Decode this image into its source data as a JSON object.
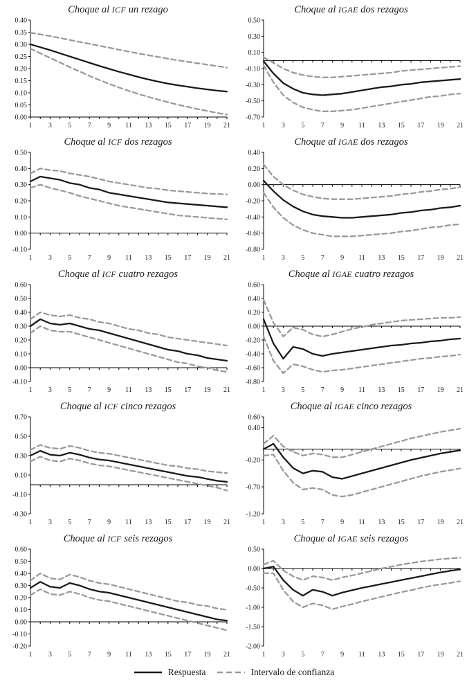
{
  "legend": {
    "respuesta_label": "Respuesta",
    "intervalo_label": "Intervalo de confianza"
  },
  "colors": {
    "respuesta_line": "#1a1a1a",
    "intervalo_line": "#9a9a9a",
    "axis": "#000000"
  },
  "x_values": [
    1,
    2,
    3,
    4,
    5,
    6,
    7,
    8,
    9,
    10,
    11,
    12,
    13,
    14,
    15,
    16,
    17,
    18,
    19,
    20,
    21
  ],
  "x_tick_labels": [
    "1",
    "3",
    "5",
    "7",
    "9",
    "11",
    "13",
    "15",
    "17",
    "19",
    "21"
  ],
  "chart_data": [
    {
      "type": "line",
      "title": "Choque al ICF un rezago",
      "title_parts": {
        "prefix": "Choque al ",
        "acronym": "ICF",
        "suffix": " un rezago"
      },
      "xlim": [
        1,
        21
      ],
      "ylim": [
        0.0,
        0.4
      ],
      "ytick_labels": [
        "0.40",
        "0.35",
        "0.30",
        "0.25",
        "0.20",
        "0.15",
        "0.10",
        "0.05",
        "0.00"
      ],
      "series": [
        {
          "name": "Respuesta",
          "values": [
            0.3,
            0.288,
            0.276,
            0.263,
            0.25,
            0.237,
            0.224,
            0.211,
            0.199,
            0.187,
            0.176,
            0.165,
            0.155,
            0.146,
            0.138,
            0.131,
            0.125,
            0.119,
            0.114,
            0.109,
            0.105
          ]
        },
        {
          "name": "Intervalo de confianza (superior)",
          "values": [
            0.348,
            0.341,
            0.334,
            0.326,
            0.318,
            0.31,
            0.302,
            0.294,
            0.286,
            0.278,
            0.27,
            0.262,
            0.255,
            0.248,
            0.241,
            0.234,
            0.228,
            0.222,
            0.216,
            0.21,
            0.204
          ]
        },
        {
          "name": "Intervalo de confianza (inferior)",
          "values": [
            0.282,
            0.263,
            0.244,
            0.225,
            0.206,
            0.188,
            0.17,
            0.153,
            0.137,
            0.122,
            0.108,
            0.095,
            0.083,
            0.072,
            0.061,
            0.051,
            0.042,
            0.033,
            0.025,
            0.017,
            0.01
          ]
        }
      ]
    },
    {
      "type": "line",
      "title": "Choque al IGAE dos rezagos",
      "title_parts": {
        "prefix": "Choque al ",
        "acronym": "IGAE",
        "suffix": " dos rezagos"
      },
      "xlim": [
        1,
        21
      ],
      "ylim": [
        -0.7,
        0.5
      ],
      "ytick_labels": [
        "0.50",
        "0.30",
        "0.10",
        "-0.10",
        "-0.30",
        "-0.50",
        "-0.70"
      ],
      "series": [
        {
          "name": "Respuesta",
          "values": [
            -0.01,
            -0.16,
            -0.28,
            -0.35,
            -0.4,
            -0.42,
            -0.43,
            -0.42,
            -0.41,
            -0.39,
            -0.37,
            -0.35,
            -0.33,
            -0.32,
            -0.3,
            -0.29,
            -0.27,
            -0.26,
            -0.25,
            -0.24,
            -0.23
          ]
        },
        {
          "name": "Intervalo de confianza (superior)",
          "values": [
            0.04,
            -0.03,
            -0.1,
            -0.15,
            -0.18,
            -0.2,
            -0.21,
            -0.21,
            -0.2,
            -0.19,
            -0.18,
            -0.17,
            -0.16,
            -0.15,
            -0.13,
            -0.12,
            -0.11,
            -0.1,
            -0.09,
            -0.08,
            -0.07
          ]
        },
        {
          "name": "Intervalo de confianza (inferior)",
          "values": [
            -0.06,
            -0.27,
            -0.43,
            -0.52,
            -0.58,
            -0.61,
            -0.63,
            -0.63,
            -0.62,
            -0.61,
            -0.59,
            -0.57,
            -0.55,
            -0.53,
            -0.51,
            -0.49,
            -0.47,
            -0.45,
            -0.44,
            -0.42,
            -0.41
          ]
        }
      ]
    },
    {
      "type": "line",
      "title": "Choque al ICF dos rezagos",
      "title_parts": {
        "prefix": "Choque al ",
        "acronym": "ICF",
        "suffix": " dos rezagos"
      },
      "xlim": [
        1,
        21
      ],
      "ylim": [
        -0.1,
        0.5
      ],
      "ytick_labels": [
        "0.50",
        "0.40",
        "0.30",
        "0.20",
        "0.10",
        "0.00",
        "-0.10"
      ],
      "series": [
        {
          "name": "Respuesta",
          "values": [
            0.32,
            0.35,
            0.34,
            0.33,
            0.31,
            0.3,
            0.28,
            0.27,
            0.25,
            0.24,
            0.23,
            0.22,
            0.21,
            0.2,
            0.19,
            0.185,
            0.18,
            0.175,
            0.17,
            0.165,
            0.16
          ]
        },
        {
          "name": "Intervalo de confianza (superior)",
          "values": [
            0.37,
            0.4,
            0.39,
            0.385,
            0.37,
            0.36,
            0.35,
            0.335,
            0.32,
            0.31,
            0.3,
            0.29,
            0.28,
            0.275,
            0.265,
            0.26,
            0.255,
            0.25,
            0.245,
            0.242,
            0.24
          ]
        },
        {
          "name": "Intervalo de confianza (inferior)",
          "values": [
            0.28,
            0.3,
            0.28,
            0.265,
            0.25,
            0.23,
            0.215,
            0.2,
            0.185,
            0.17,
            0.16,
            0.15,
            0.14,
            0.13,
            0.12,
            0.11,
            0.105,
            0.1,
            0.095,
            0.09,
            0.085
          ]
        }
      ]
    },
    {
      "type": "line",
      "title": "Choque al IGAE dos rezagos",
      "title_parts": {
        "prefix": "Choque al ",
        "acronym": "IGAE",
        "suffix": " dos rezagos"
      },
      "xlim": [
        1,
        21
      ],
      "ylim": [
        -0.8,
        0.4
      ],
      "ytick_labels": [
        "0.40",
        "0.20",
        "0.00",
        "-0.20",
        "-0.40",
        "-0.60",
        "-0.80"
      ],
      "series": [
        {
          "name": "Respuesta",
          "values": [
            0.05,
            -0.08,
            -0.19,
            -0.27,
            -0.33,
            -0.37,
            -0.39,
            -0.4,
            -0.41,
            -0.41,
            -0.4,
            -0.39,
            -0.38,
            -0.37,
            -0.35,
            -0.34,
            -0.32,
            -0.31,
            -0.29,
            -0.28,
            -0.26
          ]
        },
        {
          "name": "Intervalo de confianza (superior)",
          "values": [
            0.25,
            0.1,
            0.0,
            -0.07,
            -0.12,
            -0.15,
            -0.17,
            -0.18,
            -0.18,
            -0.18,
            -0.17,
            -0.16,
            -0.15,
            -0.14,
            -0.12,
            -0.11,
            -0.09,
            -0.08,
            -0.06,
            -0.05,
            -0.03
          ]
        },
        {
          "name": "Intervalo de confianza (inferior)",
          "values": [
            -0.1,
            -0.28,
            -0.41,
            -0.5,
            -0.56,
            -0.6,
            -0.62,
            -0.64,
            -0.64,
            -0.64,
            -0.63,
            -0.62,
            -0.61,
            -0.6,
            -0.58,
            -0.57,
            -0.55,
            -0.53,
            -0.52,
            -0.5,
            -0.49
          ]
        }
      ]
    },
    {
      "type": "line",
      "title": "Choque al ICF cuatro rezagos",
      "title_parts": {
        "prefix": "Choque al ",
        "acronym": "ICF",
        "suffix": " cuatro rezagos"
      },
      "xlim": [
        1,
        21
      ],
      "ylim": [
        -0.1,
        0.6
      ],
      "ytick_labels": [
        "0.60",
        "0.50",
        "0.40",
        "0.30",
        "0.20",
        "0.10",
        "0.00",
        "-0.10"
      ],
      "series": [
        {
          "name": "Respuesta",
          "values": [
            0.3,
            0.35,
            0.32,
            0.31,
            0.32,
            0.3,
            0.28,
            0.27,
            0.25,
            0.23,
            0.21,
            0.19,
            0.17,
            0.15,
            0.13,
            0.12,
            0.1,
            0.09,
            0.07,
            0.06,
            0.05
          ]
        },
        {
          "name": "Intervalo de confianza (superior)",
          "values": [
            0.35,
            0.4,
            0.38,
            0.37,
            0.38,
            0.36,
            0.35,
            0.33,
            0.32,
            0.3,
            0.28,
            0.27,
            0.25,
            0.24,
            0.22,
            0.21,
            0.2,
            0.19,
            0.18,
            0.17,
            0.16
          ]
        },
        {
          "name": "Intervalo de confianza (inferior)",
          "values": [
            0.25,
            0.3,
            0.27,
            0.26,
            0.26,
            0.24,
            0.22,
            0.2,
            0.18,
            0.16,
            0.14,
            0.12,
            0.1,
            0.08,
            0.06,
            0.04,
            0.03,
            0.01,
            0.0,
            -0.02,
            -0.03
          ]
        }
      ]
    },
    {
      "type": "line",
      "title": "Choque al IGAE cuatro rezagos",
      "title_parts": {
        "prefix": "Choque al ",
        "acronym": "IGAE",
        "suffix": " cuatro rezagos"
      },
      "xlim": [
        1,
        21
      ],
      "ylim": [
        -0.8,
        0.6
      ],
      "ytick_labels": [
        "0.60",
        "0.40",
        "0.20",
        "0.00",
        "-0.20",
        "-0.40",
        "-0.60",
        "-0.80"
      ],
      "series": [
        {
          "name": "Respuesta",
          "values": [
            0.1,
            -0.25,
            -0.47,
            -0.3,
            -0.33,
            -0.4,
            -0.43,
            -0.4,
            -0.38,
            -0.36,
            -0.34,
            -0.32,
            -0.3,
            -0.28,
            -0.27,
            -0.25,
            -0.24,
            -0.22,
            -0.21,
            -0.19,
            -0.18
          ]
        },
        {
          "name": "Intervalo de confianza (superior)",
          "values": [
            0.38,
            0.05,
            -0.15,
            -0.02,
            -0.05,
            -0.12,
            -0.15,
            -0.12,
            -0.08,
            -0.04,
            -0.01,
            0.02,
            0.04,
            0.06,
            0.08,
            0.09,
            0.1,
            0.11,
            0.12,
            0.12,
            0.13
          ]
        },
        {
          "name": "Intervalo de confianza (inferior)",
          "values": [
            -0.15,
            -0.5,
            -0.68,
            -0.55,
            -0.58,
            -0.63,
            -0.66,
            -0.64,
            -0.63,
            -0.61,
            -0.59,
            -0.57,
            -0.55,
            -0.53,
            -0.51,
            -0.49,
            -0.47,
            -0.46,
            -0.44,
            -0.43,
            -0.41
          ]
        }
      ]
    },
    {
      "type": "line",
      "title": "Choque al ICF cinco rezagos",
      "title_parts": {
        "prefix": "Choque al ",
        "acronym": "ICF",
        "suffix": " cinco rezagos"
      },
      "xlim": [
        1,
        21
      ],
      "ylim": [
        -0.3,
        0.7
      ],
      "ytick_labels": [
        "0.70",
        "0.50",
        "0.30",
        "0.10",
        "-0.10",
        "-0.30"
      ],
      "series": [
        {
          "name": "Respuesta",
          "values": [
            0.3,
            0.35,
            0.31,
            0.3,
            0.33,
            0.31,
            0.28,
            0.26,
            0.25,
            0.23,
            0.21,
            0.19,
            0.17,
            0.15,
            0.13,
            0.11,
            0.09,
            0.08,
            0.06,
            0.04,
            0.03
          ]
        },
        {
          "name": "Intervalo de confianza (superior)",
          "values": [
            0.36,
            0.41,
            0.38,
            0.37,
            0.4,
            0.38,
            0.35,
            0.33,
            0.32,
            0.3,
            0.28,
            0.26,
            0.24,
            0.22,
            0.2,
            0.19,
            0.17,
            0.16,
            0.14,
            0.13,
            0.12
          ]
        },
        {
          "name": "Intervalo de confianza (inferior)",
          "values": [
            0.24,
            0.29,
            0.25,
            0.24,
            0.27,
            0.25,
            0.22,
            0.2,
            0.19,
            0.17,
            0.15,
            0.13,
            0.11,
            0.09,
            0.07,
            0.05,
            0.03,
            0.01,
            -0.01,
            -0.03,
            -0.06
          ]
        }
      ]
    },
    {
      "type": "line",
      "title": "Choque al IGAE cinco rezagos",
      "title_parts": {
        "prefix": "Choque al ",
        "acronym": "IGAE",
        "suffix": " cinco rezagos"
      },
      "xlim": [
        1,
        21
      ],
      "ylim": [
        -1.2,
        0.6
      ],
      "ytick_labels": [
        "0.60",
        "0.40",
        "-0.20",
        "-0.70",
        "-1.20"
      ],
      "series": [
        {
          "name": "Respuesta",
          "values": [
            0.0,
            0.1,
            -0.15,
            -0.35,
            -0.45,
            -0.4,
            -0.42,
            -0.52,
            -0.55,
            -0.5,
            -0.45,
            -0.4,
            -0.35,
            -0.3,
            -0.25,
            -0.2,
            -0.16,
            -0.12,
            -0.08,
            -0.05,
            -0.02
          ]
        },
        {
          "name": "Intervalo de confianza (superior)",
          "values": [
            0.1,
            0.25,
            0.05,
            -0.05,
            -0.12,
            -0.08,
            -0.1,
            -0.15,
            -0.15,
            -0.1,
            -0.05,
            0.0,
            0.05,
            0.1,
            0.15,
            0.2,
            0.24,
            0.28,
            0.32,
            0.35,
            0.38
          ]
        },
        {
          "name": "Intervalo de confianza (inferior)",
          "values": [
            -0.12,
            -0.1,
            -0.4,
            -0.62,
            -0.75,
            -0.72,
            -0.75,
            -0.85,
            -0.88,
            -0.85,
            -0.8,
            -0.75,
            -0.7,
            -0.65,
            -0.6,
            -0.55,
            -0.5,
            -0.46,
            -0.42,
            -0.39,
            -0.36
          ]
        }
      ]
    },
    {
      "type": "line",
      "title": "Choque al ICF seis rezagos",
      "title_parts": {
        "prefix": "Choque al ",
        "acronym": "ICF",
        "suffix": " seis rezagos"
      },
      "xlim": [
        1,
        21
      ],
      "ylim": [
        -0.2,
        0.6
      ],
      "ytick_labels": [
        "0.60",
        "0.50",
        "0.40",
        "0.30",
        "0.20",
        "0.10",
        "0.00",
        "-0.10",
        "-0.20"
      ],
      "series": [
        {
          "name": "Respuesta",
          "values": [
            0.28,
            0.33,
            0.29,
            0.28,
            0.32,
            0.3,
            0.27,
            0.25,
            0.24,
            0.22,
            0.2,
            0.18,
            0.16,
            0.14,
            0.12,
            0.1,
            0.08,
            0.06,
            0.04,
            0.02,
            0.01
          ]
        },
        {
          "name": "Intervalo de confianza (superior)",
          "values": [
            0.34,
            0.4,
            0.36,
            0.35,
            0.39,
            0.37,
            0.34,
            0.32,
            0.31,
            0.29,
            0.27,
            0.25,
            0.23,
            0.21,
            0.19,
            0.17,
            0.16,
            0.14,
            0.13,
            0.11,
            0.1
          ]
        },
        {
          "name": "Intervalo de confianza (inferior)",
          "values": [
            0.22,
            0.27,
            0.23,
            0.22,
            0.25,
            0.23,
            0.2,
            0.18,
            0.17,
            0.15,
            0.13,
            0.11,
            0.09,
            0.07,
            0.05,
            0.03,
            0.01,
            -0.01,
            -0.03,
            -0.05,
            -0.07
          ]
        }
      ]
    },
    {
      "type": "line",
      "title": "Choque al IGAE seis rezagos",
      "title_parts": {
        "prefix": "Choque al ",
        "acronym": "IGAE",
        "suffix": " seis rezagos"
      },
      "xlim": [
        1,
        21
      ],
      "ylim": [
        -2.0,
        0.5
      ],
      "ytick_labels": [
        "0.50",
        "0.00",
        "-0.50",
        "-1.00",
        "-1.50",
        "-2.00"
      ],
      "series": [
        {
          "name": "Respuesta",
          "values": [
            0.0,
            0.05,
            -0.3,
            -0.55,
            -0.7,
            -0.55,
            -0.6,
            -0.7,
            -0.62,
            -0.56,
            -0.5,
            -0.45,
            -0.4,
            -0.35,
            -0.3,
            -0.25,
            -0.2,
            -0.15,
            -0.1,
            -0.06,
            -0.02
          ]
        },
        {
          "name": "Intervalo de confianza (superior)",
          "values": [
            0.1,
            0.2,
            -0.05,
            -0.2,
            -0.3,
            -0.2,
            -0.23,
            -0.3,
            -0.23,
            -0.18,
            -0.12,
            -0.06,
            0.0,
            0.05,
            0.1,
            0.14,
            0.18,
            0.21,
            0.24,
            0.26,
            0.28
          ]
        },
        {
          "name": "Intervalo de confianza (inferior)",
          "values": [
            -0.12,
            -0.12,
            -0.55,
            -0.85,
            -1.0,
            -0.9,
            -0.95,
            -1.05,
            -0.98,
            -0.92,
            -0.85,
            -0.79,
            -0.73,
            -0.67,
            -0.61,
            -0.56,
            -0.5,
            -0.45,
            -0.41,
            -0.37,
            -0.33
          ]
        }
      ]
    }
  ]
}
